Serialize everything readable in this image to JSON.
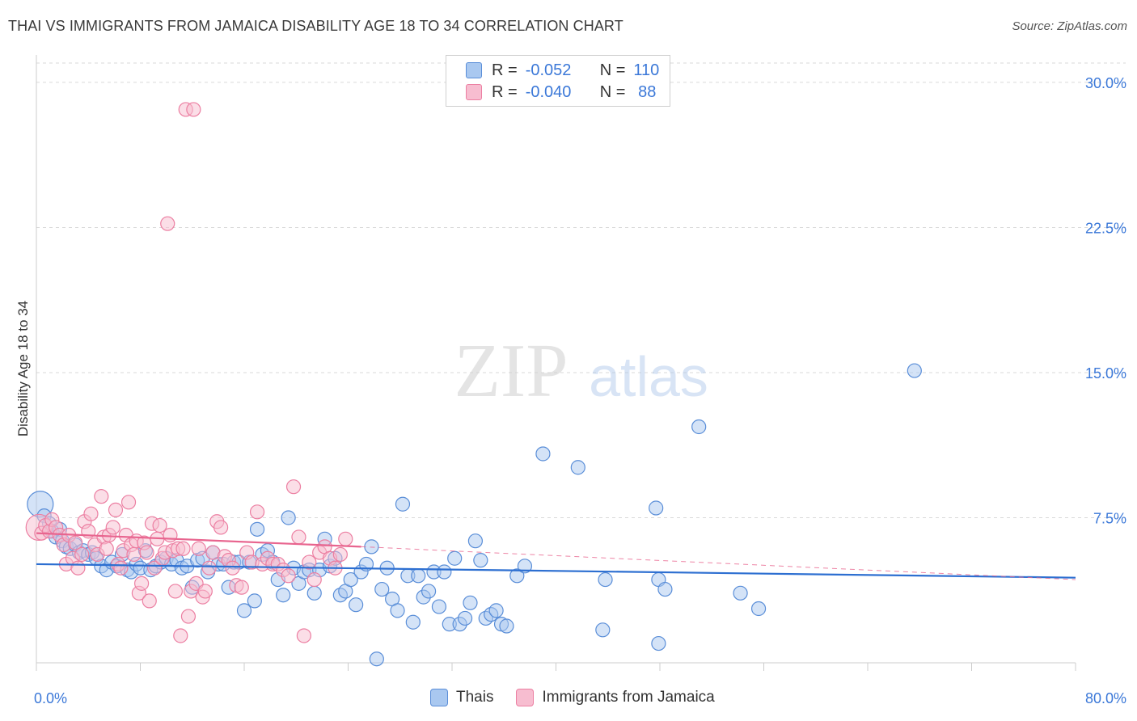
{
  "header": {
    "title": "THAI VS IMMIGRANTS FROM JAMAICA DISABILITY AGE 18 TO 34 CORRELATION CHART",
    "source": "Source: ZipAtlas.com"
  },
  "watermark": {
    "zip": "ZIP",
    "atlas": "atlas"
  },
  "legend": {
    "r_label": "R =",
    "n_label": "N =",
    "series": [
      {
        "name": "Thais",
        "r": "-0.052",
        "n": "110"
      },
      {
        "name": "Immigrants from Jamaica",
        "r": "-0.040",
        "n": "88"
      }
    ]
  },
  "colors": {
    "blue_fill": "#a9c8f0",
    "blue_stroke": "#5a8ed8",
    "blue_line": "#2d6fd1",
    "pink_fill": "#f7bdd0",
    "pink_stroke": "#ec7fa2",
    "pink_line": "#e8658f",
    "grid": "#d9d9d9",
    "axis_text": "#3b78d8"
  },
  "chart_data": {
    "type": "scatter",
    "title": "THAI VS IMMIGRANTS FROM JAMAICA DISABILITY AGE 18 TO 34 CORRELATION CHART",
    "xlabel": "",
    "ylabel": "Disability Age 18 to 34",
    "xlim": [
      0,
      80
    ],
    "ylim": [
      0,
      31
    ],
    "x_tick_labels": [
      "0.0%",
      "80.0%"
    ],
    "y_ticks": [
      7.5,
      15.0,
      22.5,
      30.0
    ],
    "y_tick_labels": [
      "7.5%",
      "15.0%",
      "22.5%",
      "30.0%"
    ],
    "grid": true,
    "series": [
      {
        "name": "Thais",
        "color": "blue",
        "trend": {
          "x0": 0,
          "y0": 5.1,
          "x1": 80,
          "y1": 4.4,
          "dashed_from": 80
        },
        "points": [
          [
            0.3,
            8.2,
            "L"
          ],
          [
            0.6,
            7.6
          ],
          [
            1.0,
            7.2
          ],
          [
            1.2,
            6.8
          ],
          [
            1.5,
            6.5
          ],
          [
            1.8,
            6.9
          ],
          [
            2.0,
            6.3
          ],
          [
            2.3,
            6.0
          ],
          [
            2.6,
            5.9
          ],
          [
            3.0,
            6.1
          ],
          [
            3.3,
            5.7
          ],
          [
            3.6,
            5.8
          ],
          [
            4.0,
            5.6
          ],
          [
            4.3,
            5.7
          ],
          [
            4.6,
            5.4
          ],
          [
            5.0,
            5.0
          ],
          [
            5.4,
            4.8
          ],
          [
            5.8,
            5.2
          ],
          [
            6.2,
            5.0
          ],
          [
            6.6,
            5.6
          ],
          [
            7.0,
            4.8
          ],
          [
            7.3,
            4.7
          ],
          [
            7.7,
            5.1
          ],
          [
            8.0,
            4.9
          ],
          [
            8.4,
            5.8
          ],
          [
            8.8,
            4.8
          ],
          [
            9.2,
            5.0
          ],
          [
            9.6,
            5.2
          ],
          [
            10.0,
            5.4
          ],
          [
            10.4,
            5.1
          ],
          [
            10.8,
            5.3
          ],
          [
            11.2,
            4.9
          ],
          [
            11.6,
            5.0
          ],
          [
            12.0,
            3.9
          ],
          [
            12.4,
            5.3
          ],
          [
            12.8,
            5.4
          ],
          [
            13.2,
            4.7
          ],
          [
            13.6,
            5.7
          ],
          [
            14.0,
            5.1
          ],
          [
            14.4,
            5.1
          ],
          [
            14.8,
            3.9
          ],
          [
            15.2,
            5.2
          ],
          [
            15.6,
            5.2
          ],
          [
            16.0,
            2.7
          ],
          [
            16.4,
            5.2
          ],
          [
            16.8,
            3.2
          ],
          [
            17.0,
            6.9
          ],
          [
            17.4,
            5.6
          ],
          [
            17.8,
            5.8
          ],
          [
            18.2,
            5.2
          ],
          [
            18.6,
            4.3
          ],
          [
            19.0,
            3.5
          ],
          [
            19.4,
            7.5
          ],
          [
            19.8,
            4.9
          ],
          [
            20.2,
            4.1
          ],
          [
            20.6,
            4.7
          ],
          [
            21.0,
            4.8
          ],
          [
            21.4,
            3.6
          ],
          [
            21.8,
            4.8
          ],
          [
            22.2,
            6.4
          ],
          [
            22.6,
            5.0
          ],
          [
            23.0,
            5.4
          ],
          [
            23.4,
            3.5
          ],
          [
            23.8,
            3.7
          ],
          [
            24.2,
            4.3
          ],
          [
            24.6,
            3.0
          ],
          [
            25.0,
            4.7
          ],
          [
            25.4,
            5.1
          ],
          [
            25.8,
            6.0
          ],
          [
            26.2,
            0.2
          ],
          [
            26.6,
            3.8
          ],
          [
            27.0,
            4.9
          ],
          [
            27.4,
            3.3
          ],
          [
            27.8,
            2.7
          ],
          [
            28.2,
            8.2
          ],
          [
            28.6,
            4.5
          ],
          [
            29.0,
            2.1
          ],
          [
            29.4,
            4.5
          ],
          [
            29.8,
            3.4
          ],
          [
            30.2,
            3.7
          ],
          [
            30.6,
            4.7
          ],
          [
            31.0,
            2.9
          ],
          [
            31.4,
            4.7
          ],
          [
            31.8,
            2.0
          ],
          [
            32.2,
            5.4
          ],
          [
            32.6,
            2.0
          ],
          [
            33.0,
            2.3
          ],
          [
            33.4,
            3.1
          ],
          [
            33.8,
            6.3
          ],
          [
            34.2,
            5.3
          ],
          [
            34.6,
            2.3
          ],
          [
            35.0,
            2.5
          ],
          [
            35.4,
            2.7
          ],
          [
            35.8,
            2.0
          ],
          [
            36.2,
            1.9
          ],
          [
            37.0,
            4.5
          ],
          [
            37.6,
            5.0
          ],
          [
            39.0,
            10.8
          ],
          [
            41.7,
            10.1
          ],
          [
            43.6,
            1.7
          ],
          [
            43.8,
            4.3
          ],
          [
            47.7,
            8.0
          ],
          [
            47.9,
            4.3
          ],
          [
            48.4,
            3.8
          ],
          [
            47.9,
            1.0
          ],
          [
            51.0,
            12.2
          ],
          [
            54.2,
            3.6
          ],
          [
            55.6,
            2.8
          ],
          [
            67.6,
            15.1
          ]
        ]
      },
      {
        "name": "Immigrants from Jamaica",
        "color": "pink",
        "trend": {
          "x0": 0,
          "y0": 6.7,
          "x1": 25,
          "y1": 6.0,
          "dashed_from": 25,
          "dashed_x1": 80,
          "dashed_y1": 4.3
        },
        "points": [
          [
            0.2,
            7.0,
            "L"
          ],
          [
            0.4,
            6.7
          ],
          [
            0.7,
            7.1
          ],
          [
            1.0,
            6.8
          ],
          [
            1.2,
            7.4
          ],
          [
            1.5,
            7.0
          ],
          [
            1.8,
            6.6
          ],
          [
            2.1,
            6.1
          ],
          [
            2.3,
            5.1
          ],
          [
            2.5,
            6.6
          ],
          [
            2.8,
            5.4
          ],
          [
            3.0,
            6.2
          ],
          [
            3.2,
            4.9
          ],
          [
            3.5,
            5.6
          ],
          [
            3.7,
            7.3
          ],
          [
            4.0,
            6.8
          ],
          [
            4.2,
            7.7
          ],
          [
            4.5,
            6.1
          ],
          [
            4.7,
            5.6
          ],
          [
            5.0,
            8.6
          ],
          [
            5.2,
            6.5
          ],
          [
            5.4,
            5.9
          ],
          [
            5.6,
            6.6
          ],
          [
            5.9,
            7.0
          ],
          [
            6.1,
            7.9
          ],
          [
            6.3,
            5.1
          ],
          [
            6.5,
            4.9
          ],
          [
            6.7,
            5.8
          ],
          [
            6.9,
            6.6
          ],
          [
            7.1,
            8.3
          ],
          [
            7.3,
            6.1
          ],
          [
            7.5,
            5.6
          ],
          [
            7.7,
            6.3
          ],
          [
            7.9,
            3.6
          ],
          [
            8.1,
            4.1
          ],
          [
            8.3,
            6.2
          ],
          [
            8.5,
            5.7
          ],
          [
            8.7,
            3.2
          ],
          [
            8.9,
            7.2
          ],
          [
            9.1,
            4.9
          ],
          [
            9.3,
            6.4
          ],
          [
            9.5,
            7.1
          ],
          [
            9.7,
            5.4
          ],
          [
            9.9,
            5.7
          ],
          [
            10.1,
            22.7
          ],
          [
            10.3,
            6.6
          ],
          [
            10.5,
            5.8
          ],
          [
            10.7,
            3.7
          ],
          [
            10.9,
            5.9
          ],
          [
            11.1,
            1.4
          ],
          [
            11.3,
            5.9
          ],
          [
            11.5,
            28.6
          ],
          [
            11.7,
            2.4
          ],
          [
            11.9,
            3.7
          ],
          [
            12.1,
            28.6
          ],
          [
            12.3,
            4.1
          ],
          [
            12.5,
            5.9
          ],
          [
            12.8,
            3.4
          ],
          [
            13.0,
            3.7
          ],
          [
            13.3,
            4.9
          ],
          [
            13.6,
            5.7
          ],
          [
            13.9,
            7.3
          ],
          [
            14.2,
            7.0
          ],
          [
            14.5,
            5.5
          ],
          [
            14.8,
            5.3
          ],
          [
            15.1,
            4.9
          ],
          [
            15.4,
            4.0
          ],
          [
            15.8,
            3.9
          ],
          [
            16.2,
            5.7
          ],
          [
            16.6,
            5.2
          ],
          [
            17.0,
            7.8
          ],
          [
            17.4,
            5.1
          ],
          [
            17.8,
            5.4
          ],
          [
            18.2,
            5.1
          ],
          [
            18.6,
            5.1
          ],
          [
            19.0,
            4.8
          ],
          [
            19.4,
            4.5
          ],
          [
            19.8,
            9.1
          ],
          [
            20.2,
            6.5
          ],
          [
            20.6,
            1.4
          ],
          [
            21.0,
            5.2
          ],
          [
            21.4,
            4.3
          ],
          [
            21.8,
            5.7
          ],
          [
            22.2,
            6.0
          ],
          [
            22.6,
            5.4
          ],
          [
            23.0,
            4.9
          ],
          [
            23.4,
            5.6
          ],
          [
            23.8,
            6.4
          ]
        ]
      }
    ]
  }
}
